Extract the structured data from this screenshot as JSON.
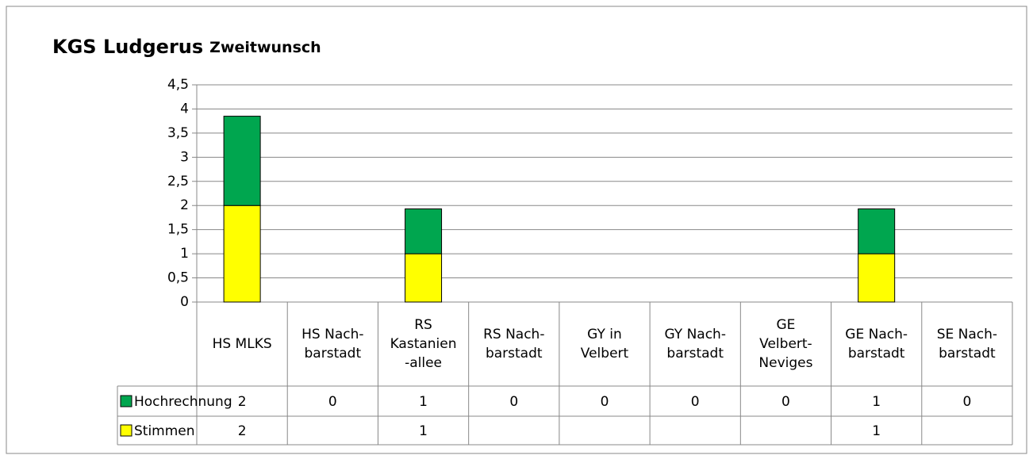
{
  "chart_data": {
    "type": "stacked_bar",
    "title": "KGS Ludgerus",
    "subtitle": "Zweitwunsch",
    "categories": [
      "HS MLKS",
      "HS Nach-\nbarstadt",
      "RS\nKastanien\n-allee",
      "RS Nach-\nbarstadt",
      "GY in\nVelbert",
      "GY Nach-\nbarstadt",
      "GE\nVelbert-\nNeviges",
      "GE Nach-\nbarstadt",
      "SE Nach-\nbarstadt"
    ],
    "series": [
      {
        "name": "Hochrechnung",
        "color": "#00a64f",
        "values": [
          1.85,
          0,
          0.93,
          0,
          0,
          0,
          0,
          0.93,
          0
        ],
        "value_labels": [
          "2",
          "0",
          "1",
          "0",
          "0",
          "0",
          "0",
          "1",
          "0"
        ]
      },
      {
        "name": "Stimmen",
        "color": "#ffff00",
        "values": [
          2,
          null,
          1,
          null,
          null,
          null,
          null,
          1,
          null
        ]
      }
    ],
    "ylim": [
      0,
      4.5
    ],
    "yticks": [
      0,
      {
        "value": 0.5,
        "label": "0,5"
      },
      1,
      {
        "value": 1.5,
        "label": "1,5"
      },
      2,
      {
        "value": 2.5,
        "label": "2,5"
      },
      3,
      {
        "value": 3.5,
        "label": "3,5"
      },
      4,
      {
        "value": 4.5,
        "label": "4,5"
      }
    ],
    "grid": true
  }
}
